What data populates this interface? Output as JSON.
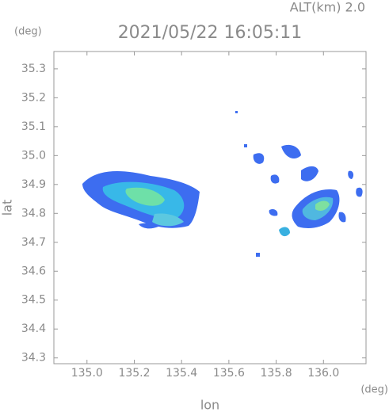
{
  "chart_data": {
    "type": "map",
    "title": "2021/05/22 16:05:11",
    "subtitle": "ALT(km)  2.0",
    "y_unit": "(deg)",
    "x_unit": "(deg)",
    "xlabel": "lon",
    "ylabel": "lat",
    "xlim": [
      134.86,
      136.18
    ],
    "ylim": [
      34.28,
      35.36
    ],
    "xticks": [
      {
        "value": 135,
        "label": "135.0"
      },
      135.2,
      135.4,
      135.6,
      135.8,
      {
        "value": 136,
        "label": "136.0"
      }
    ],
    "yticks": [
      34.3,
      34.4,
      34.5,
      34.6,
      34.7,
      34.8,
      34.9,
      {
        "value": 35,
        "label": "35.0"
      },
      35.1,
      35.2,
      35.3
    ]
  }
}
